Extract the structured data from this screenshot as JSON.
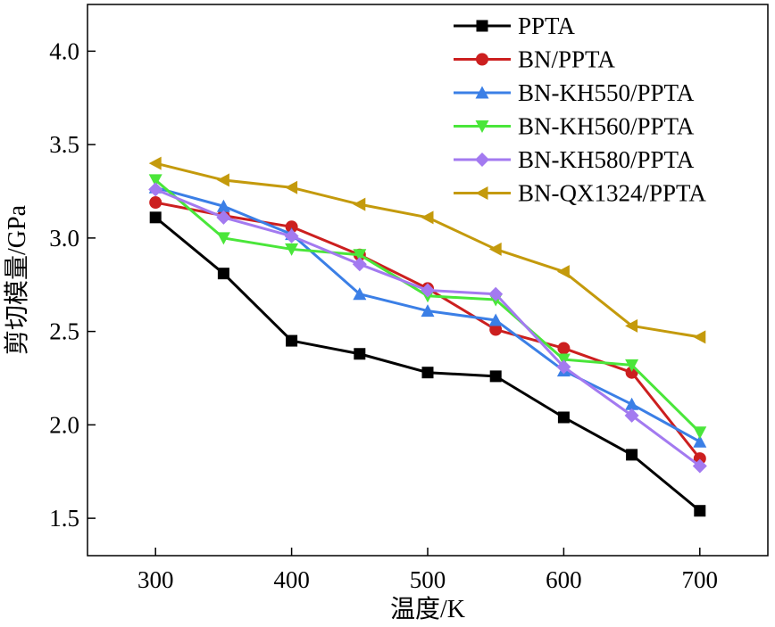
{
  "chart_data": {
    "type": "line",
    "title": "",
    "xlabel": "温度/K",
    "ylabel": "剪切模量/GPa",
    "x": [
      300,
      350,
      400,
      450,
      500,
      550,
      600,
      650,
      700
    ],
    "xlim": [
      250,
      750
    ],
    "ylim": [
      1.3,
      4.25
    ],
    "xticks": [
      "300",
      "400",
      "500",
      "600",
      "700"
    ],
    "yticks": [
      "1.5",
      "2.0",
      "2.5",
      "3.0",
      "3.5",
      "4.0"
    ],
    "grid": false,
    "legend_position": "top-right",
    "series": [
      {
        "name": "PPTA",
        "color": "#000000",
        "marker": "square",
        "values": [
          3.11,
          2.81,
          2.45,
          2.38,
          2.28,
          2.26,
          2.04,
          1.84,
          1.54
        ]
      },
      {
        "name": "BN/PPTA",
        "color": "#cc1f1f",
        "marker": "circle",
        "values": [
          3.19,
          3.12,
          3.06,
          2.91,
          2.73,
          2.51,
          2.41,
          2.28,
          1.82
        ]
      },
      {
        "name": "BN-KH550/PPTA",
        "color": "#3b7fe6",
        "marker": "triangle-up",
        "values": [
          3.27,
          3.17,
          3.02,
          2.7,
          2.61,
          2.56,
          2.29,
          2.11,
          1.91
        ]
      },
      {
        "name": "BN-KH560/PPTA",
        "color": "#4ae63a",
        "marker": "triangle-down",
        "values": [
          3.31,
          3.0,
          2.94,
          2.91,
          2.69,
          2.67,
          2.35,
          2.32,
          1.96
        ]
      },
      {
        "name": "BN-KH580/PPTA",
        "color": "#a37af0",
        "marker": "diamond",
        "values": [
          3.26,
          3.11,
          3.01,
          2.86,
          2.72,
          2.7,
          2.31,
          2.05,
          1.78
        ]
      },
      {
        "name": "BN-QX1324/PPTA",
        "color": "#c49a0c",
        "marker": "triangle-left",
        "values": [
          3.4,
          3.31,
          3.27,
          3.18,
          3.11,
          2.94,
          2.82,
          2.53,
          2.47
        ]
      }
    ]
  }
}
